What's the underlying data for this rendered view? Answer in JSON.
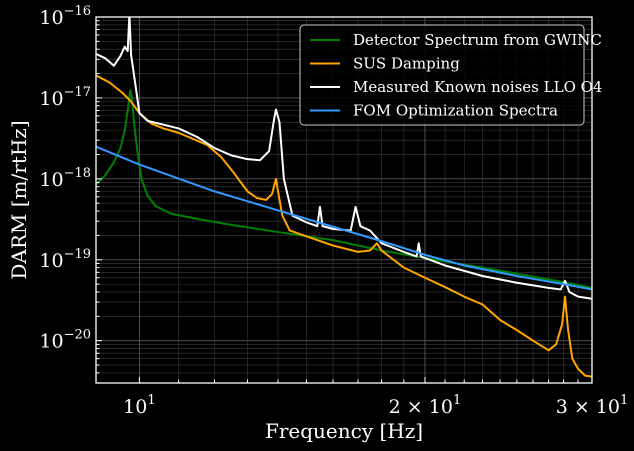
{
  "chart_data": {
    "type": "line",
    "xlabel": "Frequency [Hz]",
    "ylabel": "DARM [m/rtHz]",
    "xscale": "log",
    "yscale": "log",
    "xlim": [
      9,
      30
    ],
    "ylim": [
      3e-21,
      1e-16
    ],
    "grid": true,
    "legend_position": "top-right",
    "xticks": [
      {
        "value": 10,
        "base": "10",
        "exp": "1",
        "prefix": ""
      },
      {
        "value": 20,
        "base": "10",
        "exp": "1",
        "prefix": "2 × "
      },
      {
        "value": 30,
        "base": "10",
        "exp": "1",
        "prefix": "3 × "
      }
    ],
    "yticks": [
      {
        "value": 1e-20,
        "base": "10",
        "exp": "−20"
      },
      {
        "value": 1e-19,
        "base": "10",
        "exp": "−19"
      },
      {
        "value": 1e-18,
        "base": "10",
        "exp": "−18"
      },
      {
        "value": 1e-17,
        "base": "10",
        "exp": "−17"
      },
      {
        "value": 1e-16,
        "base": "10",
        "exp": "−16"
      }
    ],
    "series": [
      {
        "name": "Detector Spectrum from GWINC",
        "color": "#008000",
        "points": [
          [
            9,
            8.5e-19
          ],
          [
            9.2,
            1.1e-18
          ],
          [
            9.4,
            1.6e-18
          ],
          [
            9.55,
            2.4e-18
          ],
          [
            9.65,
            4e-18
          ],
          [
            9.72,
            7e-18
          ],
          [
            9.78,
            1.25e-17
          ],
          [
            9.82,
            1e-17
          ],
          [
            9.87,
            5e-18
          ],
          [
            9.95,
            2.2e-18
          ],
          [
            10.05,
            1e-18
          ],
          [
            10.2,
            6.2e-19
          ],
          [
            10.4,
            4.6e-19
          ],
          [
            10.8,
            3.7e-19
          ],
          [
            11.5,
            3.2e-19
          ],
          [
            12.5,
            2.7e-19
          ],
          [
            14,
            2.2e-19
          ],
          [
            16,
            1.75e-19
          ],
          [
            18,
            1.3e-19
          ],
          [
            20,
            1.05e-19
          ],
          [
            23,
            8e-20
          ],
          [
            26,
            6.2e-20
          ],
          [
            28,
            5.3e-20
          ],
          [
            30,
            4.5e-20
          ]
        ]
      },
      {
        "name": "SUS Damping",
        "color": "#FFA500",
        "points": [
          [
            9,
            1.9e-17
          ],
          [
            9.3,
            1.55e-17
          ],
          [
            9.6,
            1.15e-17
          ],
          [
            9.8,
            9e-18
          ],
          [
            10,
            6.5e-18
          ],
          [
            10.3,
            4.8e-18
          ],
          [
            10.6,
            4.2e-18
          ],
          [
            11,
            3.7e-18
          ],
          [
            11.4,
            3.1e-18
          ],
          [
            11.8,
            2.6e-18
          ],
          [
            12.2,
            1.85e-18
          ],
          [
            12.6,
            1.15e-18
          ],
          [
            13,
            7e-19
          ],
          [
            13.3,
            5.8e-19
          ],
          [
            13.6,
            5.5e-19
          ],
          [
            13.8,
            6.5e-19
          ],
          [
            13.93,
            1e-18
          ],
          [
            14.0,
            7e-19
          ],
          [
            14.15,
            3.5e-19
          ],
          [
            14.4,
            2.3e-19
          ],
          [
            15,
            1.95e-19
          ],
          [
            16,
            1.5e-19
          ],
          [
            17,
            1.25e-19
          ],
          [
            17.5,
            1.3e-19
          ],
          [
            17.8,
            1.6e-19
          ],
          [
            18,
            1.3e-19
          ],
          [
            19,
            8e-20
          ],
          [
            20,
            6e-20
          ],
          [
            21,
            4.6e-20
          ],
          [
            22,
            3.5e-20
          ],
          [
            23,
            2.8e-20
          ],
          [
            24,
            1.8e-20
          ],
          [
            25,
            1.35e-20
          ],
          [
            26,
            1e-20
          ],
          [
            27,
            7.6e-21
          ],
          [
            27.5,
            9e-21
          ],
          [
            27.9,
            1.6e-20
          ],
          [
            28.1,
            3.5e-20
          ],
          [
            28.3,
            1.4e-20
          ],
          [
            28.6,
            6e-21
          ],
          [
            29,
            4.5e-21
          ],
          [
            29.5,
            3.7e-21
          ],
          [
            30,
            3.6e-21
          ]
        ]
      },
      {
        "name": "Measured Known noises LLO O4",
        "color": "#FFFFFF",
        "points": [
          [
            9,
            3.5e-17
          ],
          [
            9.2,
            3.1e-17
          ],
          [
            9.4,
            2.5e-17
          ],
          [
            9.55,
            3.3e-17
          ],
          [
            9.65,
            4.3e-17
          ],
          [
            9.72,
            3.8e-17
          ],
          [
            9.76,
            1.1e-16
          ],
          [
            9.8,
            3.4e-17
          ],
          [
            9.9,
            1.5e-17
          ],
          [
            10,
            6.5e-18
          ],
          [
            10.2,
            5.2e-18
          ],
          [
            10.5,
            4.8e-18
          ],
          [
            11,
            4.2e-18
          ],
          [
            11.5,
            3.3e-18
          ],
          [
            12,
            2.4e-18
          ],
          [
            12.5,
            1.95e-18
          ],
          [
            13,
            1.75e-18
          ],
          [
            13.4,
            1.7e-18
          ],
          [
            13.7,
            2.2e-18
          ],
          [
            13.85,
            5e-18
          ],
          [
            13.93,
            7.2e-18
          ],
          [
            14.05,
            5e-18
          ],
          [
            14.2,
            1e-18
          ],
          [
            14.5,
            3.5e-19
          ],
          [
            15,
            2.9e-19
          ],
          [
            15.4,
            2.6e-19
          ],
          [
            15.5,
            4.5e-19
          ],
          [
            15.6,
            2.6e-19
          ],
          [
            16,
            2.4e-19
          ],
          [
            16.7,
            2.3e-19
          ],
          [
            16.9,
            4.5e-19
          ],
          [
            17.1,
            2.6e-19
          ],
          [
            17.5,
            2.3e-19
          ],
          [
            18,
            1.6e-19
          ],
          [
            19,
            1.25e-19
          ],
          [
            19.6,
            1.1e-19
          ],
          [
            19.7,
            1.6e-19
          ],
          [
            19.8,
            1.1e-19
          ],
          [
            21,
            8.5e-20
          ],
          [
            23,
            6.3e-20
          ],
          [
            25,
            5.2e-20
          ],
          [
            27,
            4.5e-20
          ],
          [
            27.8,
            4.3e-20
          ],
          [
            28.1,
            5.5e-20
          ],
          [
            28.4,
            4e-20
          ],
          [
            29,
            3.5e-20
          ],
          [
            30,
            3.3e-20
          ]
        ]
      },
      {
        "name": "FOM Optimization Spectra",
        "color": "#3399FF",
        "points": [
          [
            9,
            2.5e-18
          ],
          [
            10,
            1.5e-18
          ],
          [
            12,
            7e-19
          ],
          [
            15,
            3.2e-19
          ],
          [
            18,
            1.7e-19
          ],
          [
            20,
            1.15e-19
          ],
          [
            22,
            8.5e-20
          ],
          [
            25,
            6.3e-20
          ],
          [
            28,
            5e-20
          ],
          [
            30,
            4.3e-20
          ]
        ]
      }
    ]
  }
}
